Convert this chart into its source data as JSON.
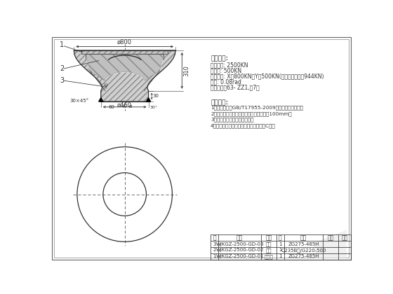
{
  "bg_color": "#ffffff",
  "line_color": "#333333",
  "title_text": "技术参数:",
  "tech_params": [
    "竖向压力: 2500KN",
    "拉拔力: 500KN",
    "水平剪力: X向800KN，Y向500KN(众心剪方失合力944KN)",
    "转量: 0.08rad",
    "适用于抗震63- ZZ1,以7卜"
  ],
  "tech_req_title": "技术要求:",
  "tech_req": [
    "1、本支座参考GB/T17955-2009（桥梁球型支座）。",
    "2、支座出，埋件圆弧涂未件沙里产钢低温100mm。",
    "3、转动中心为二支座板中心。",
    "4、支座与上部结构花涂把处需留间中竖C压沟"
  ],
  "table_rows": [
    [
      "3",
      "WJKGZ-2500-GD-03",
      "座型",
      "1",
      "ZG275-485H",
      "",
      ""
    ],
    [
      "2",
      "WJKGZ-2500-GD-02",
      "球壳",
      "1",
      "Q235B板/G220-500",
      "",
      ""
    ],
    [
      "1",
      "WJKGZ-2500-GD-01",
      "上板型",
      "1",
      "ZG275-485H",
      "",
      ""
    ]
  ],
  "table_header": [
    "序",
    "代号",
    "名称",
    "数",
    "材料",
    "图号",
    "备注"
  ],
  "col_ws": [
    14,
    80,
    28,
    14,
    72,
    28,
    24
  ]
}
